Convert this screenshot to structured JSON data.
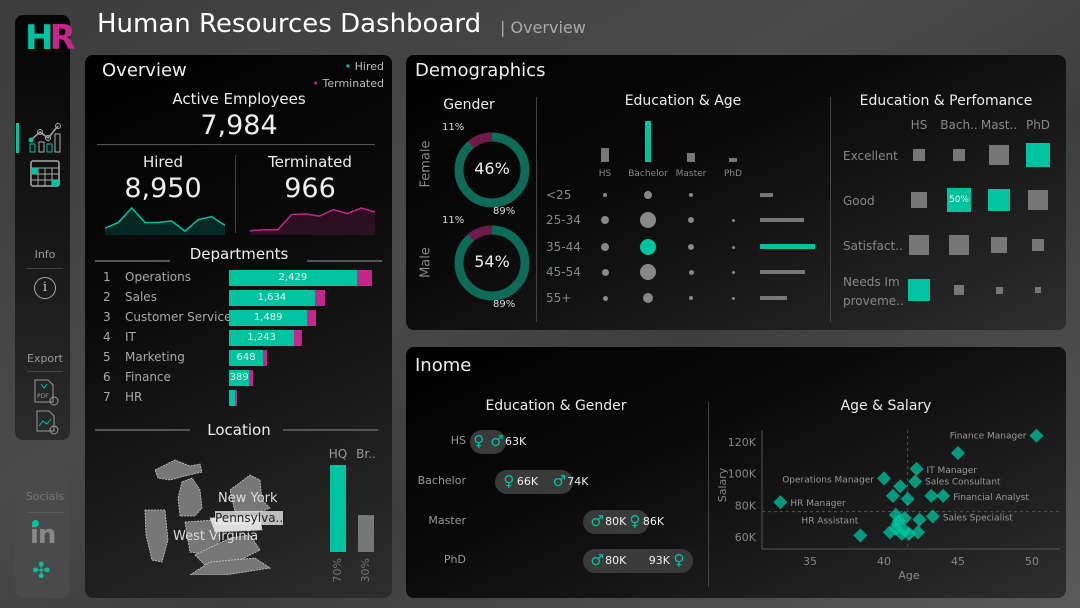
{
  "header": {
    "title": "Human Resources Dashboard",
    "subtitle": "Overview"
  },
  "sidebar": {
    "logo": "HR",
    "info_label": "Info",
    "export_label": "Export",
    "socials_label": "Socials",
    "icons": [
      "dashboard-chart-icon",
      "table-icon",
      "info-icon",
      "export-pdf-icon",
      "export-image-icon",
      "linkedin-icon",
      "tableau-icon"
    ]
  },
  "colors": {
    "hired": "#00c4a0",
    "terminated": "#c4268c",
    "neutral": "#7a7a7a"
  },
  "overview": {
    "title": "Overview",
    "legend": {
      "hired": "Hired",
      "terminated": "Terminated"
    },
    "active_label": "Active Employees",
    "active_value": "7,984",
    "hired_label": "Hired",
    "hired_value": "8,950",
    "terminated_label": "Terminated",
    "terminated_value": "966",
    "hired_trend": [
      2,
      4,
      9,
      4,
      4,
      4.5,
      1,
      5,
      6,
      3
    ],
    "terminated_trend": [
      1,
      1.3,
      1.3,
      6,
      6.2,
      5.5,
      7.5,
      6.3,
      8,
      6.8
    ],
    "departments_title": "Departments",
    "departments": [
      {
        "rank": "1",
        "name": "Operations",
        "hired": 2429,
        "hired_label": "2,429",
        "terminated": 290
      },
      {
        "rank": "2",
        "name": "Sales",
        "hired": 1634,
        "hired_label": "1,634",
        "terminated": 190
      },
      {
        "rank": "3",
        "name": "Customer Service",
        "hired": 1489,
        "hired_label": "1,489",
        "terminated": 170
      },
      {
        "rank": "4",
        "name": "IT",
        "hired": 1243,
        "hired_label": "1,243",
        "terminated": 140
      },
      {
        "rank": "5",
        "name": "Marketing",
        "hired": 648,
        "hired_label": "648",
        "terminated": 70
      },
      {
        "rank": "6",
        "name": "Finance",
        "hired": 389,
        "hired_label": "389",
        "terminated": 60
      },
      {
        "rank": "7",
        "name": "HR",
        "hired": 120,
        "hired_label": "",
        "terminated": 25
      }
    ],
    "location_title": "Location",
    "map_labels": [
      "New York",
      "Pennsylva..",
      "West Virginia"
    ],
    "location": [
      {
        "label": "HQ",
        "pct": 70,
        "pct_label": "70%"
      },
      {
        "label": "Br..",
        "pct": 30,
        "pct_label": "30%"
      }
    ]
  },
  "demographics": {
    "title": "Demographics",
    "gender": {
      "title": "Gender",
      "items": [
        {
          "label": "Female",
          "share": "46%",
          "terminated_pct": 11,
          "hired_pct": 89,
          "terminated_label": "11%",
          "hired_label": "89%"
        },
        {
          "label": "Male",
          "share": "54%",
          "terminated_pct": 11,
          "hired_pct": 89,
          "terminated_label": "11%",
          "hired_label": "89%"
        }
      ]
    },
    "education_age": {
      "title": "Education & Age",
      "education": [
        "HS",
        "Bachelor",
        "Master",
        "PhD"
      ],
      "education_totals": [
        14,
        41,
        9,
        4
      ],
      "ages": [
        "<25",
        "25-34",
        "35-44",
        "45-54",
        "55+"
      ],
      "age_totals": [
        13,
        44,
        55,
        45,
        27
      ],
      "matrix": [
        [
          2,
          4,
          2,
          0
        ],
        [
          4,
          8,
          3,
          1.5
        ],
        [
          4,
          8,
          3,
          1.5
        ],
        [
          3.5,
          8,
          2.5,
          1.5
        ],
        [
          2.5,
          5,
          2,
          1.5
        ]
      ],
      "highlight": {
        "education": 1,
        "age": 2
      }
    },
    "education_performance": {
      "title": "Education & Perfomance",
      "columns": [
        "HS",
        "Bach..",
        "Mast..",
        "PhD"
      ],
      "rows": [
        "Excellent",
        "Good",
        "Satisfact..",
        "Needs Im proveme.."
      ],
      "matrix": [
        [
          12,
          12,
          20,
          24
        ],
        [
          16,
          24,
          22,
          20
        ],
        [
          20,
          20,
          16,
          12
        ],
        [
          22,
          10,
          7,
          6
        ]
      ],
      "highlight": [
        [
          0,
          3
        ],
        [
          1,
          1
        ],
        [
          1,
          2
        ],
        [
          3,
          0
        ]
      ],
      "cell_label": {
        "row": 1,
        "col": 1,
        "text": "50%"
      }
    }
  },
  "income": {
    "title": "Inome",
    "education_gender": {
      "title": "Education & Gender",
      "rows": [
        {
          "label": "HS",
          "female": 62,
          "male": 63,
          "female_label": "",
          "male_label": "63K"
        },
        {
          "label": "Bachelor",
          "female": 66,
          "male": 74,
          "female_label": "66K",
          "male_label": "74K"
        },
        {
          "label": "Master",
          "female": 86,
          "male": 80,
          "female_label": "86K",
          "male_label": "80K"
        },
        {
          "label": "PhD",
          "female": 93,
          "male": 80,
          "female_label": "93K",
          "male_label": "80K"
        }
      ]
    },
    "age_salary": {
      "title": "Age & Salary",
      "xlabel": "Age",
      "ylabel": "Salary",
      "x_ticks": [
        "35",
        "40",
        "45",
        "50"
      ],
      "y_ticks": [
        "60K",
        "80K",
        "100K",
        "120K"
      ]
    }
  },
  "chart_data": {
    "type": "scatter",
    "title": "Age & Salary",
    "xlabel": "Age",
    "ylabel": "Salary",
    "xlim": [
      32,
      52
    ],
    "ylim": [
      53,
      130
    ],
    "reference_lines": {
      "age": 41.6,
      "salary": 76
    },
    "points": [
      {
        "age": 50.3,
        "salary": 124,
        "label": "Finance Manager"
      },
      {
        "age": 45,
        "salary": 113,
        "label": ""
      },
      {
        "age": 42.2,
        "salary": 103,
        "label": "IT Manager"
      },
      {
        "age": 40,
        "salary": 97,
        "label": "Operations Manager"
      },
      {
        "age": 41.1,
        "salary": 92,
        "label": ""
      },
      {
        "age": 42.1,
        "salary": 95,
        "label": "Sales Consultant"
      },
      {
        "age": 40.6,
        "salary": 86,
        "label": ""
      },
      {
        "age": 41.6,
        "salary": 84,
        "label": ""
      },
      {
        "age": 43.2,
        "salary": 86,
        "label": ""
      },
      {
        "age": 44,
        "salary": 86,
        "label": "Financial Analyst"
      },
      {
        "age": 33,
        "salary": 82,
        "label": "HR Manager"
      },
      {
        "age": 43.3,
        "salary": 73,
        "label": "Sales Specialist"
      },
      {
        "age": 42.4,
        "salary": 71,
        "label": ""
      },
      {
        "age": 41.4,
        "salary": 72,
        "label": ""
      },
      {
        "age": 40.8,
        "salary": 74,
        "label": ""
      },
      {
        "age": 38.4,
        "salary": 61,
        "label": "HR Assistant"
      },
      {
        "age": 40.4,
        "salary": 63,
        "label": ""
      },
      {
        "age": 40.9,
        "salary": 68,
        "label": ""
      },
      {
        "age": 41.2,
        "salary": 62,
        "label": ""
      },
      {
        "age": 41.7,
        "salary": 62,
        "label": ""
      },
      {
        "age": 42.3,
        "salary": 63,
        "label": ""
      },
      {
        "age": 40.8,
        "salary": 65,
        "label": ""
      },
      {
        "age": 41.0,
        "salary": 70,
        "label": ""
      },
      {
        "age": 41.4,
        "salary": 64,
        "label": ""
      }
    ]
  }
}
